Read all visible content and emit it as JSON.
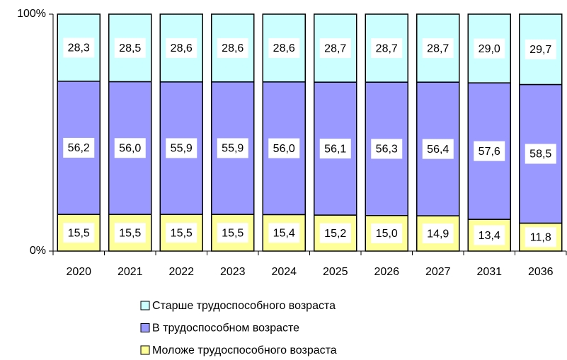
{
  "chart_data": {
    "type": "stacked_bar",
    "categories": [
      "2020",
      "2021",
      "2022",
      "2023",
      "2024",
      "2025",
      "2026",
      "2027",
      "2031",
      "2036"
    ],
    "series": [
      {
        "name": "Моложе трудоспособного возраста",
        "color": "#ffff99",
        "values": [
          15.5,
          15.5,
          15.5,
          15.5,
          15.4,
          15.2,
          15.0,
          14.9,
          13.4,
          11.8
        ],
        "value_labels": [
          "15,5",
          "15,5",
          "15,5",
          "15,5",
          "15,4",
          "15,2",
          "15,0",
          "14,9",
          "13,4",
          "11,8"
        ]
      },
      {
        "name": "В трудоспособном возрасте",
        "color": "#9999ff",
        "values": [
          56.2,
          56.0,
          55.9,
          55.9,
          56.0,
          56.1,
          56.3,
          56.4,
          57.6,
          58.5
        ],
        "value_labels": [
          "56,2",
          "56,0",
          "55,9",
          "55,9",
          "56,0",
          "56,1",
          "56,3",
          "56,4",
          "57,6",
          "58,5"
        ]
      },
      {
        "name": "Старше трудоспособного возраста",
        "color": "#ccffff",
        "values": [
          28.3,
          28.5,
          28.6,
          28.6,
          28.6,
          28.7,
          28.7,
          28.7,
          29.0,
          29.7
        ],
        "value_labels": [
          "28,3",
          "28,5",
          "28,6",
          "28,6",
          "28,6",
          "28,7",
          "28,7",
          "28,7",
          "29,0",
          "29,7"
        ]
      }
    ],
    "ylim": [
      0,
      100
    ],
    "yticks": [
      {
        "value": 0,
        "label": "0%"
      },
      {
        "value": 100,
        "label": "100%"
      }
    ],
    "legend": "bottom"
  }
}
